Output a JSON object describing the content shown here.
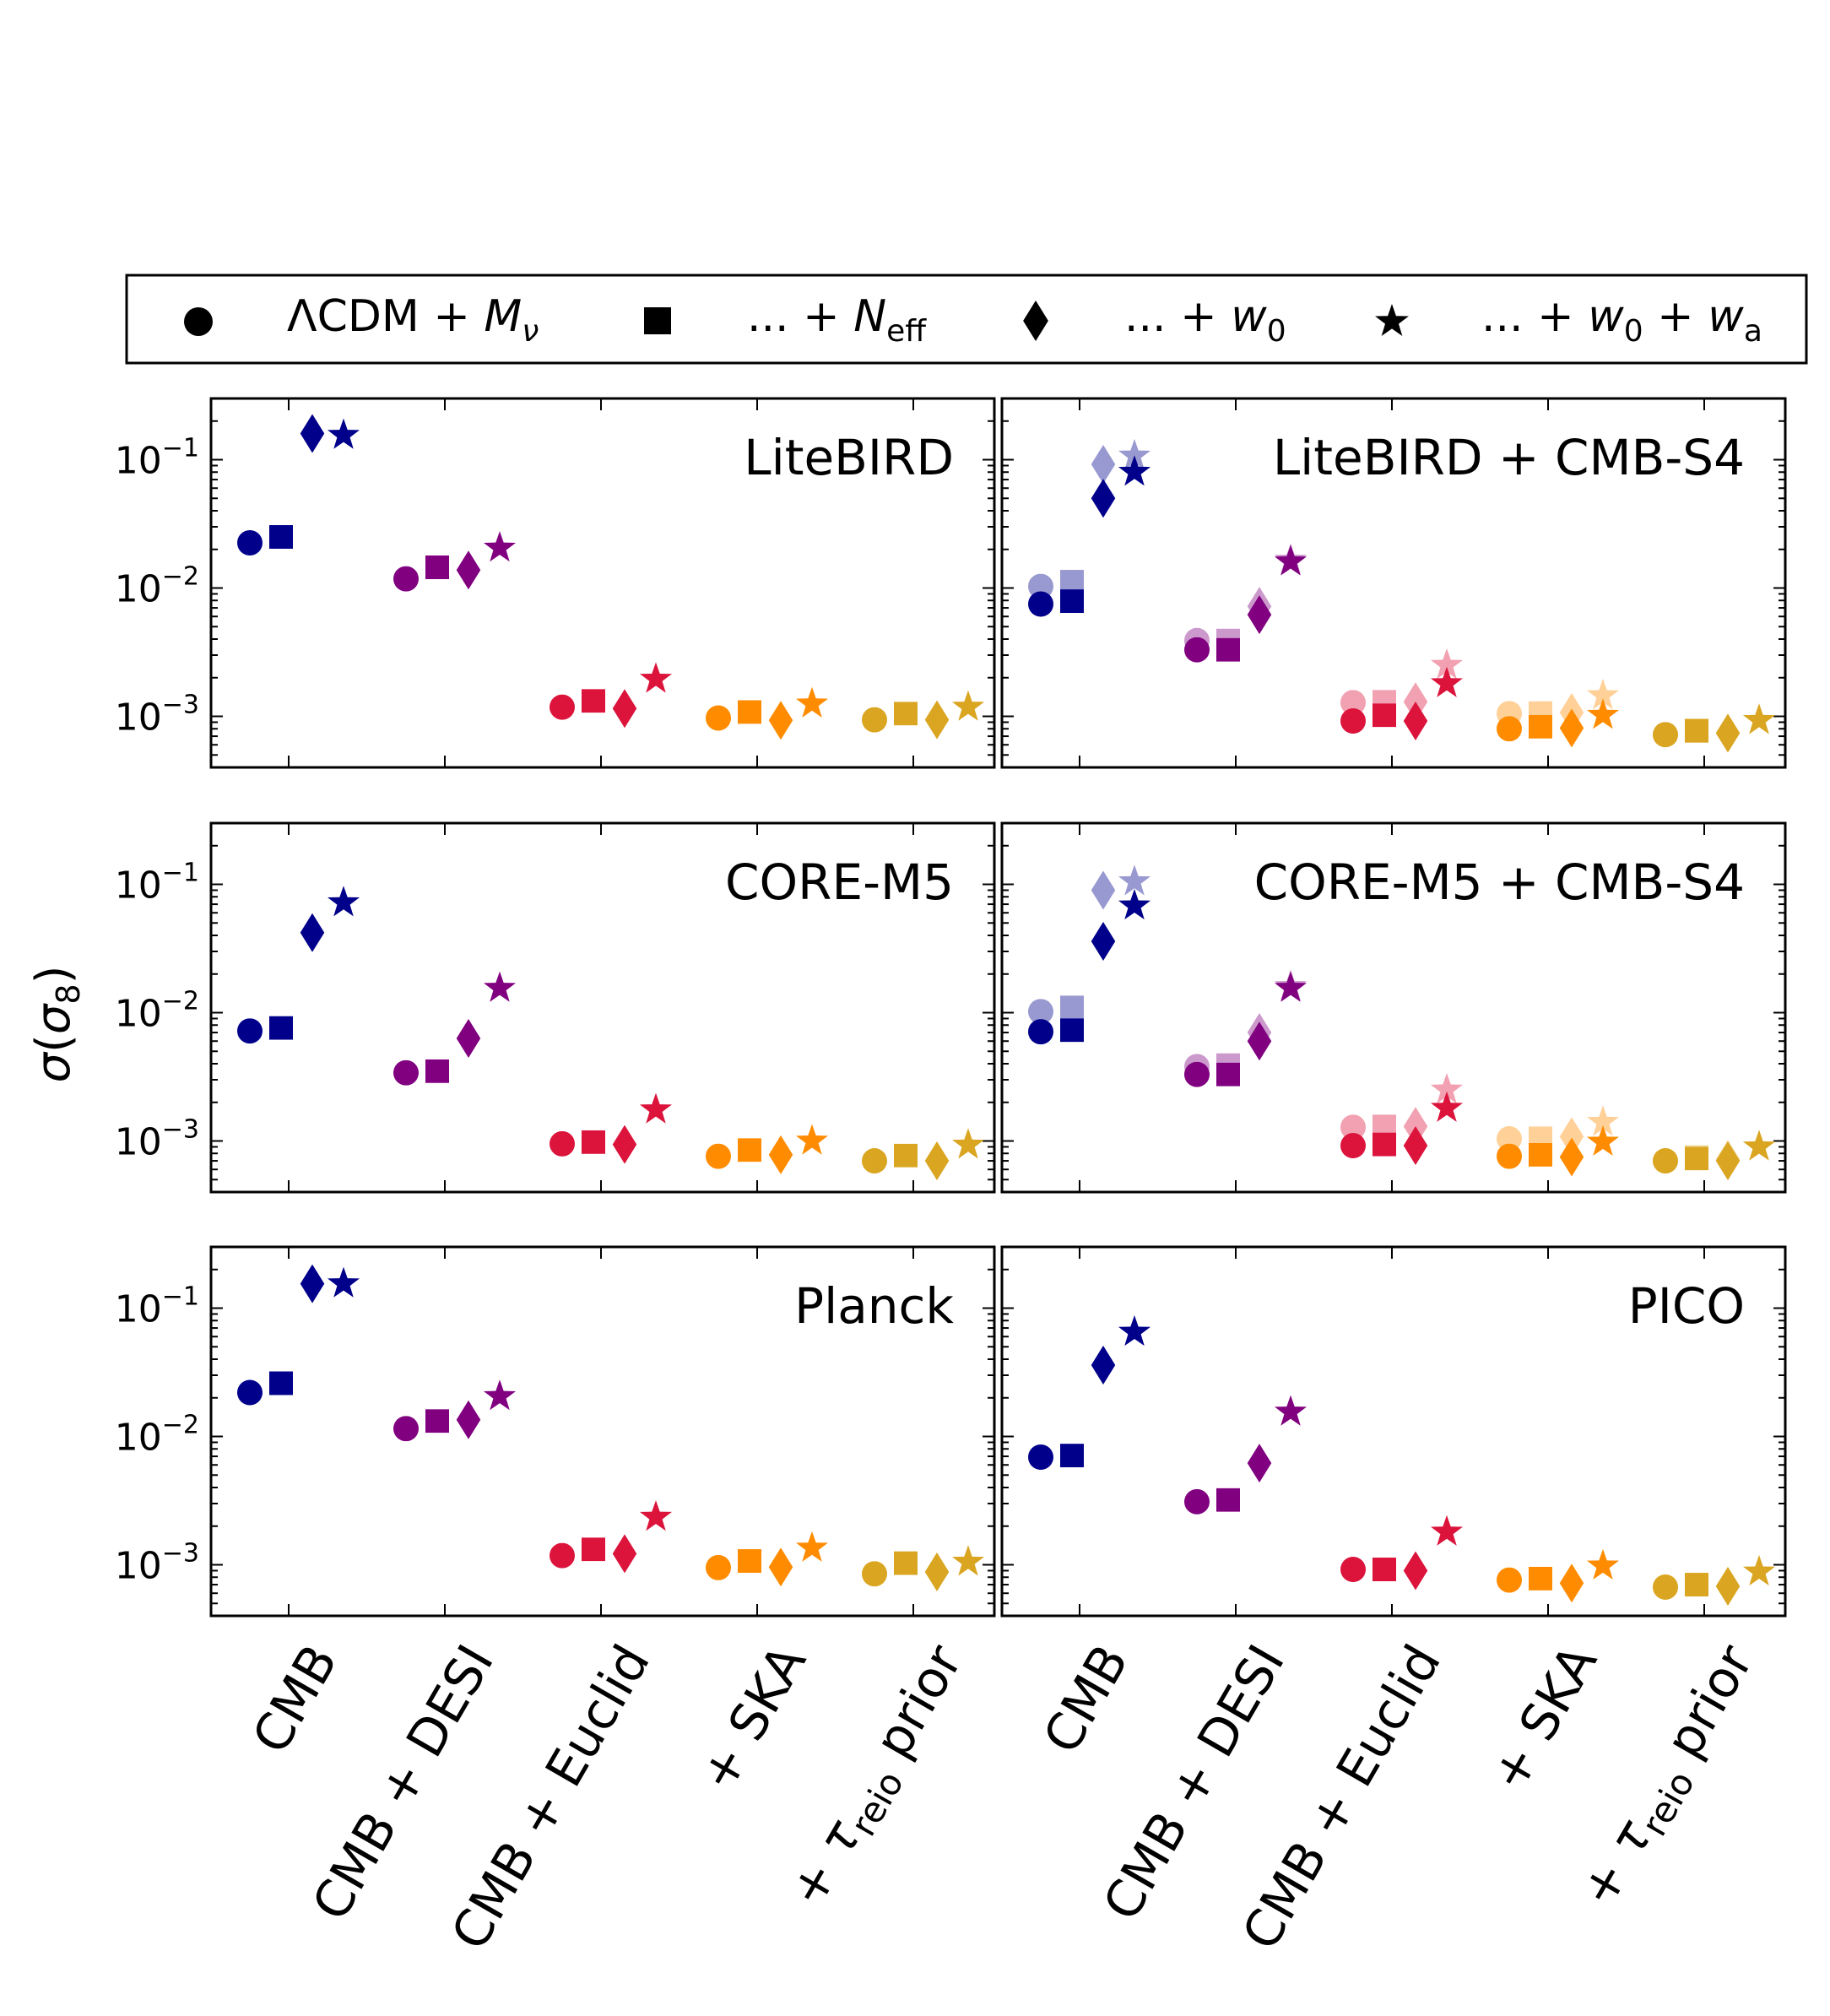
{
  "y_axis_label": "σ(σ8)",
  "legend": [
    {
      "marker": "circle",
      "label": "ΛCDM + M_ν"
    },
    {
      "marker": "square",
      "label": "... + N_eff"
    },
    {
      "marker": "diamond",
      "label": "... + w_0"
    },
    {
      "marker": "star",
      "label": "... + w_0 + w_a"
    }
  ],
  "colors": {
    "CMB": "#00008b",
    "CMB + DESI": "#800080",
    "CMB + Euclid": "#dc143c",
    "+ SKA": "#ff8c00",
    "+ τreio prior": "#daa520"
  },
  "chart_data": [
    {
      "type": "scatter",
      "title": "LiteBIRD",
      "categories": [
        "CMB",
        "CMB + DESI",
        "CMB + Euclid",
        "+ SKA",
        "+ τreio prior"
      ],
      "yscale": "log",
      "ylim": [
        0.0004,
        0.3
      ],
      "yticks": [
        "10^-1",
        "10^-2",
        "10^-3"
      ],
      "series": [
        {
          "name": "ΛCDM + Mν",
          "values": [
            0.0225,
            0.0118,
            0.00118,
            0.00097,
            0.00094
          ]
        },
        {
          "name": "... + Neff",
          "values": [
            0.025,
            0.0145,
            0.00132,
            0.00108,
            0.00105
          ]
        },
        {
          "name": "... + w0",
          "values": [
            0.16,
            0.0138,
            0.00115,
            0.00093,
            0.00094
          ]
        },
        {
          "name": "... + w0 + wa",
          "values": [
            0.155,
            0.0205,
            0.00195,
            0.00125,
            0.00118
          ]
        }
      ],
      "faded_series": []
    },
    {
      "type": "scatter",
      "title": "LiteBIRD + CMB-S4",
      "categories": [
        "CMB",
        "CMB + DESI",
        "CMB + Euclid",
        "+ SKA",
        "+ τreio prior"
      ],
      "yscale": "log",
      "ylim": [
        0.0004,
        0.3
      ],
      "yticks": [],
      "series": [
        {
          "name": "ΛCDM + Mν",
          "values": [
            0.0075,
            0.0033,
            0.00092,
            0.0008,
            0.00072
          ]
        },
        {
          "name": "... + Neff",
          "values": [
            0.0079,
            0.0033,
            0.00102,
            0.00083,
            0.00077
          ]
        },
        {
          "name": "... + w0",
          "values": [
            0.05,
            0.0062,
            0.00092,
            0.00081,
            0.00074
          ]
        },
        {
          "name": "... + w0 + wa",
          "values": [
            0.08,
            0.016,
            0.0018,
            0.00102,
            0.00093
          ]
        }
      ],
      "faded_series": [
        {
          "name": "ΛCDM + Mν",
          "values": [
            0.0103,
            0.0039,
            0.00128,
            0.00105,
            0.00072
          ]
        },
        {
          "name": "... + Neff",
          "values": [
            0.0112,
            0.0039,
            0.0013,
            0.00106,
            0.00078
          ]
        },
        {
          "name": "... + w0",
          "values": [
            0.092,
            0.0072,
            0.0013,
            0.00107,
            0.00074
          ]
        },
        {
          "name": "... + w0 + wa",
          "values": [
            0.107,
            0.0165,
            0.0025,
            0.00145,
            0.00093
          ]
        }
      ]
    },
    {
      "type": "scatter",
      "title": "CORE-M5",
      "categories": [
        "CMB",
        "CMB + DESI",
        "CMB + Euclid",
        "+ SKA",
        "+ τreio prior"
      ],
      "yscale": "log",
      "ylim": [
        0.0004,
        0.3
      ],
      "yticks": [
        "10^-1",
        "10^-2",
        "10^-3"
      ],
      "series": [
        {
          "name": "ΛCDM + Mν",
          "values": [
            0.0072,
            0.0034,
            0.00095,
            0.00076,
            0.0007
          ]
        },
        {
          "name": "... + Neff",
          "values": [
            0.0076,
            0.0035,
            0.00098,
            0.00085,
            0.00077
          ]
        },
        {
          "name": "... + w0",
          "values": [
            0.042,
            0.0063,
            0.00094,
            0.00078,
            0.0007
          ]
        },
        {
          "name": "... + w0 + wa",
          "values": [
            0.072,
            0.0155,
            0.00175,
            0.001,
            0.00093
          ]
        }
      ],
      "faded_series": []
    },
    {
      "type": "scatter",
      "title": "CORE-M5 + CMB-S4",
      "categories": [
        "CMB",
        "CMB + DESI",
        "CMB + Euclid",
        "+ SKA",
        "+ τreio prior"
      ],
      "yscale": "log",
      "ylim": [
        0.0004,
        0.3
      ],
      "yticks": [],
      "series": [
        {
          "name": "ΛCDM + Mν",
          "values": [
            0.0071,
            0.0033,
            0.00092,
            0.00076,
            0.0007
          ]
        },
        {
          "name": "... + Neff",
          "values": [
            0.0073,
            0.0033,
            0.00094,
            0.00078,
            0.00073
          ]
        },
        {
          "name": "... + w0",
          "values": [
            0.036,
            0.006,
            0.00092,
            0.00075,
            0.0007
          ]
        },
        {
          "name": "... + w0 + wa",
          "values": [
            0.068,
            0.0155,
            0.0018,
            0.00098,
            0.0009
          ]
        }
      ],
      "faded_series": [
        {
          "name": "ΛCDM + Mν",
          "values": [
            0.0102,
            0.0038,
            0.00128,
            0.00104,
            0.0007
          ]
        },
        {
          "name": "... + Neff",
          "values": [
            0.011,
            0.0039,
            0.0013,
            0.00105,
            0.00075
          ]
        },
        {
          "name": "... + w0",
          "values": [
            0.09,
            0.007,
            0.0013,
            0.00108,
            0.00072
          ]
        },
        {
          "name": "... + w0 + wa",
          "values": [
            0.105,
            0.016,
            0.0025,
            0.0014,
            0.0009
          ]
        }
      ]
    },
    {
      "type": "scatter",
      "title": "Planck",
      "categories": [
        "CMB",
        "CMB + DESI",
        "CMB + Euclid",
        "+ SKA",
        "+ τreio prior"
      ],
      "yscale": "log",
      "ylim": [
        0.0004,
        0.3
      ],
      "yticks": [
        "10^-1",
        "10^-2",
        "10^-3"
      ],
      "series": [
        {
          "name": "ΛCDM + Mν",
          "values": [
            0.022,
            0.0115,
            0.00118,
            0.00095,
            0.00085
          ]
        },
        {
          "name": "... + Neff",
          "values": [
            0.026,
            0.0132,
            0.00132,
            0.00107,
            0.00103
          ]
        },
        {
          "name": "... + w0",
          "values": [
            0.155,
            0.0135,
            0.00122,
            0.00096,
            0.00088
          ]
        },
        {
          "name": "... + w0 + wa",
          "values": [
            0.155,
            0.0205,
            0.00235,
            0.00135,
            0.00105
          ]
        }
      ],
      "faded_series": []
    },
    {
      "type": "scatter",
      "title": "PICO",
      "categories": [
        "CMB",
        "CMB + DESI",
        "CMB + Euclid",
        "+ SKA",
        "+ τreio prior"
      ],
      "yscale": "log",
      "ylim": [
        0.0004,
        0.3
      ],
      "yticks": [],
      "series": [
        {
          "name": "ΛCDM + Mν",
          "values": [
            0.0069,
            0.0031,
            0.00092,
            0.00076,
            0.00067
          ]
        },
        {
          "name": "... + Neff",
          "values": [
            0.0071,
            0.0032,
            0.00092,
            0.00078,
            0.0007
          ]
        },
        {
          "name": "... + w0",
          "values": [
            0.036,
            0.0062,
            0.0009,
            0.00072,
            0.00068
          ]
        },
        {
          "name": "... + w0 + wa",
          "values": [
            0.065,
            0.0155,
            0.0018,
            0.00098,
            0.00088
          ]
        }
      ],
      "faded_series": []
    }
  ]
}
